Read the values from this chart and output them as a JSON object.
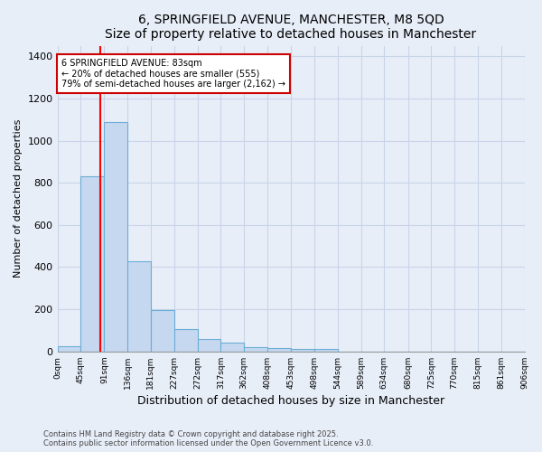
{
  "title": "6, SPRINGFIELD AVENUE, MANCHESTER, M8 5QD",
  "subtitle": "Size of property relative to detached houses in Manchester",
  "xlabel": "Distribution of detached houses by size in Manchester",
  "ylabel": "Number of detached properties",
  "bar_edges": [
    0,
    45,
    91,
    136,
    181,
    227,
    272,
    317,
    362,
    408,
    453,
    498,
    544,
    589,
    634,
    680,
    725,
    770,
    815,
    861,
    906
  ],
  "bar_heights": [
    25,
    830,
    1090,
    430,
    195,
    105,
    60,
    40,
    20,
    15,
    10,
    10,
    0,
    0,
    0,
    0,
    0,
    0,
    0,
    0
  ],
  "bar_color": "#c5d8f0",
  "bar_edge_color": "#6baed6",
  "red_line_x": 83,
  "ylim": [
    0,
    1450
  ],
  "xlim": [
    0,
    906
  ],
  "annotation_line1": "6 SPRINGFIELD AVENUE: 83sqm",
  "annotation_line2": "← 20% of detached houses are smaller (555)",
  "annotation_line3": "79% of semi-detached houses are larger (2,162) →",
  "annotation_box_color": "#ffffff",
  "annotation_box_edge": "#cc0000",
  "footer_line1": "Contains HM Land Registry data © Crown copyright and database right 2025.",
  "footer_line2": "Contains public sector information licensed under the Open Government Licence v3.0.",
  "tick_labels": [
    "0sqm",
    "45sqm",
    "91sqm",
    "136sqm",
    "181sqm",
    "227sqm",
    "272sqm",
    "317sqm",
    "362sqm",
    "408sqm",
    "453sqm",
    "498sqm",
    "544sqm",
    "589sqm",
    "634sqm",
    "680sqm",
    "725sqm",
    "770sqm",
    "815sqm",
    "861sqm",
    "906sqm"
  ],
  "background_color": "#e8eef8",
  "grid_color": "#c8d4e8",
  "yticks": [
    0,
    200,
    400,
    600,
    800,
    1000,
    1200,
    1400
  ]
}
